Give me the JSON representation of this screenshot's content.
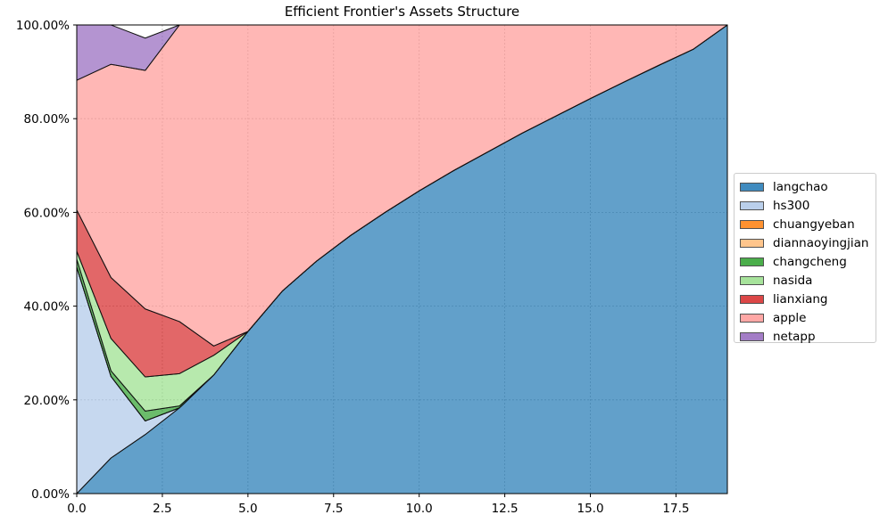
{
  "chart_data": {
    "type": "area",
    "title": "Efficient Frontier's Assets Structure",
    "xlabel": "",
    "ylabel": "",
    "xlim": [
      0,
      19
    ],
    "ylim": [
      0,
      1
    ],
    "x_ticks": [
      "0.0",
      "2.5",
      "5.0",
      "7.5",
      "10.0",
      "12.5",
      "15.0",
      "17.5"
    ],
    "x_tick_values": [
      0,
      2.5,
      5,
      7.5,
      10,
      12.5,
      15,
      17.5
    ],
    "y_ticks": [
      "0.00%",
      "20.00%",
      "40.00%",
      "60.00%",
      "80.00%",
      "100.00%"
    ],
    "y_tick_values": [
      0,
      0.2,
      0.4,
      0.6,
      0.8,
      1.0
    ],
    "grid": true,
    "stacked": true,
    "legend_position": "right",
    "x": [
      0,
      1,
      2,
      3,
      4,
      5,
      6,
      7,
      8,
      9,
      10,
      11,
      12,
      13,
      14,
      15,
      16,
      17,
      18,
      19
    ],
    "series": [
      {
        "name": "langchao",
        "color": "#1f77b4",
        "values": [
          0,
          0.076,
          0.126,
          0.183,
          0.253,
          0.346,
          0.432,
          0.496,
          0.551,
          0.6,
          0.646,
          0.689,
          0.729,
          0.769,
          0.806,
          0.843,
          0.879,
          0.914,
          0.948,
          1.0
        ]
      },
      {
        "name": "hs300",
        "color": "#aec7e8",
        "values": [
          0.483,
          0.174,
          0.029,
          0,
          0,
          0,
          0,
          0,
          0,
          0,
          0,
          0,
          0,
          0,
          0,
          0,
          0,
          0,
          0,
          0
        ]
      },
      {
        "name": "chuangyeban",
        "color": "#ff7f0e",
        "values": [
          0,
          0,
          0,
          0,
          0,
          0,
          0,
          0,
          0,
          0,
          0,
          0,
          0,
          0,
          0,
          0,
          0,
          0,
          0,
          0
        ]
      },
      {
        "name": "diannaoyingjian",
        "color": "#ffbb78",
        "values": [
          0,
          0,
          0,
          0,
          0,
          0,
          0,
          0,
          0,
          0,
          0,
          0,
          0,
          0,
          0,
          0,
          0,
          0,
          0,
          0
        ]
      },
      {
        "name": "changcheng",
        "color": "#2ca02c",
        "values": [
          0.017,
          0.012,
          0.021,
          0.004,
          0,
          0,
          0,
          0,
          0,
          0,
          0,
          0,
          0,
          0,
          0,
          0,
          0,
          0,
          0,
          0
        ]
      },
      {
        "name": "nasida",
        "color": "#98df8a",
        "values": [
          0.017,
          0.069,
          0.073,
          0.069,
          0.042,
          0,
          0,
          0,
          0,
          0,
          0,
          0,
          0,
          0,
          0,
          0,
          0,
          0,
          0,
          0
        ]
      },
      {
        "name": "lianxiang",
        "color": "#d62728",
        "values": [
          0.088,
          0.13,
          0.145,
          0.111,
          0.02,
          0,
          0,
          0,
          0,
          0,
          0,
          0,
          0,
          0,
          0,
          0,
          0,
          0,
          0,
          0
        ]
      },
      {
        "name": "apple",
        "color": "#ff9896",
        "values": [
          0.277,
          0.455,
          0.509,
          0.633,
          0.685,
          0.654,
          0.568,
          0.504,
          0.449,
          0.4,
          0.354,
          0.311,
          0.271,
          0.231,
          0.194,
          0.157,
          0.121,
          0.086,
          0.052,
          0
        ]
      },
      {
        "name": "netapp",
        "color": "#9467bd",
        "values": [
          0.118,
          0.084,
          0.069,
          0,
          0,
          0,
          0,
          0,
          0,
          0,
          0,
          0,
          0,
          0,
          0,
          0,
          0,
          0,
          0,
          0
        ]
      }
    ]
  }
}
